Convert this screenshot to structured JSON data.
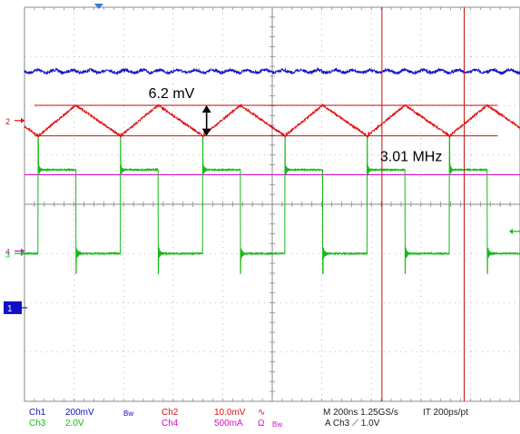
{
  "colors": {
    "ch1": "#1010c8",
    "ch2": "#e01010",
    "ch3": "#18b818",
    "ch4": "#d010c8",
    "grid": "#8a8a8a",
    "cursor": "#c81010",
    "annotation": "#000000"
  },
  "chart_data": {
    "type": "line",
    "title": "",
    "xlabel": "",
    "ylabel": "",
    "grid": true,
    "divisions": {
      "x": 10,
      "y": 8
    },
    "timebase": "200ns",
    "xlim_ns": [
      0,
      2000
    ],
    "series": [
      {
        "name": "Ch1",
        "scale": "200mV",
        "marker": "",
        "offset_div": -1.3,
        "shape": "flat-noisy"
      },
      {
        "name": "Ch2",
        "scale": "10.0mV",
        "marker": "2",
        "offset_div": 1.7,
        "shape": "sawtooth-ripple",
        "ripple_mV": 6.2,
        "frequency_MHz": 3.01,
        "period_ns": 332
      },
      {
        "name": "Ch3",
        "scale": "2.0V",
        "marker": "3",
        "offset_div": -1.0,
        "shape": "switching-pulse",
        "period_ns": 332,
        "high_div": 1.7,
        "duty": 0.46
      },
      {
        "name": "Ch4",
        "scale": "500mA",
        "marker": "4",
        "offset_div": 0.6,
        "shape": "flat"
      }
    ],
    "ground_marker": "1",
    "annotations": [
      {
        "text": "6.2 mV",
        "type": "amplitude"
      },
      {
        "text": "3.01 MHz",
        "type": "frequency"
      }
    ]
  },
  "status_bar": {
    "ch1_label": "Ch1",
    "ch1_scale": "200mV",
    "ch1_bw": "Bw",
    "ch2_label": "Ch2",
    "ch2_scale": "10.0mV",
    "ch2_sym": "∿",
    "ch3_label": "Ch3",
    "ch3_scale": "2.0V",
    "ch4_label": "Ch4",
    "ch4_scale": "500mA",
    "ch4_sym": "Ω",
    "ch4_bw": "Bw",
    "timebase": "M 200ns 1.25GS/s",
    "interp": "IT 200ps/pt",
    "trigger": "A  Ch3  ⟋  1.0V"
  }
}
